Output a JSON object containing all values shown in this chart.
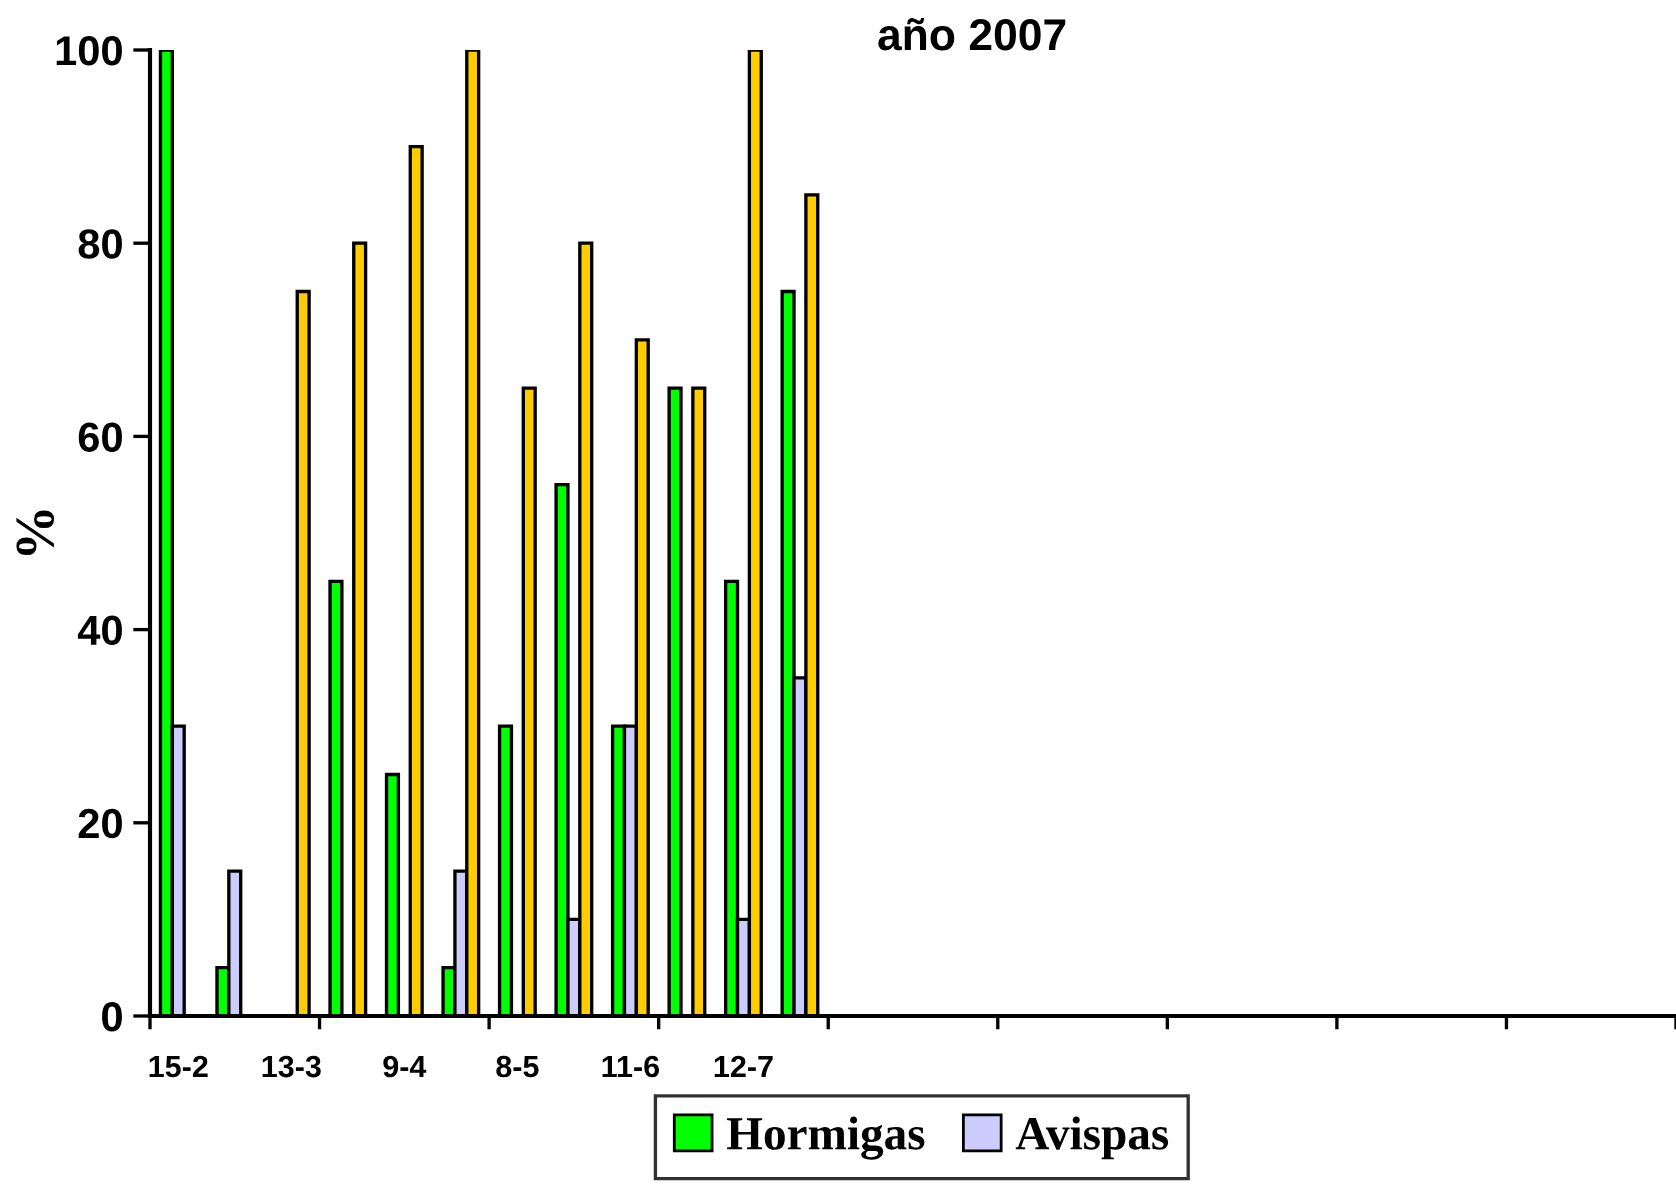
{
  "chart_data": {
    "type": "bar",
    "title": "año 2007",
    "ylabel": "%",
    "categories": [
      "15-2",
      null,
      "13-3",
      null,
      "9-4",
      null,
      "8-5",
      null,
      "11-6",
      null,
      "12-7",
      null,
      null,
      null,
      null,
      null,
      null,
      null,
      null,
      null,
      null,
      null,
      null,
      null,
      null,
      null,
      null
    ],
    "series": [
      {
        "name": "Hormigas",
        "color": "#00ff00",
        "values": [
          100,
          5,
          null,
          45,
          25,
          5,
          30,
          55,
          30,
          65,
          45,
          75,
          null,
          null,
          null,
          null,
          null,
          null,
          null,
          null,
          null,
          null,
          null,
          null,
          null,
          null,
          null
        ]
      },
      {
        "name": "Avispas",
        "color": "#ccccff",
        "values": [
          30,
          15,
          null,
          null,
          null,
          15,
          null,
          10,
          30,
          null,
          10,
          35,
          null,
          null,
          null,
          null,
          null,
          null,
          null,
          null,
          null,
          null,
          null,
          null,
          null,
          null,
          null
        ]
      },
      {
        "color": "#ffcc00",
        "values": [
          null,
          null,
          75,
          80,
          90,
          100,
          65,
          80,
          70,
          65,
          100,
          85,
          null,
          null,
          null,
          null,
          null,
          null,
          null,
          null,
          null,
          null,
          null,
          null,
          null,
          null,
          null
        ]
      }
    ],
    "ylim": [
      0,
      100
    ],
    "yticks": [
      0,
      20,
      40,
      60,
      80,
      100
    ],
    "grid": false,
    "legend": "bottom"
  }
}
